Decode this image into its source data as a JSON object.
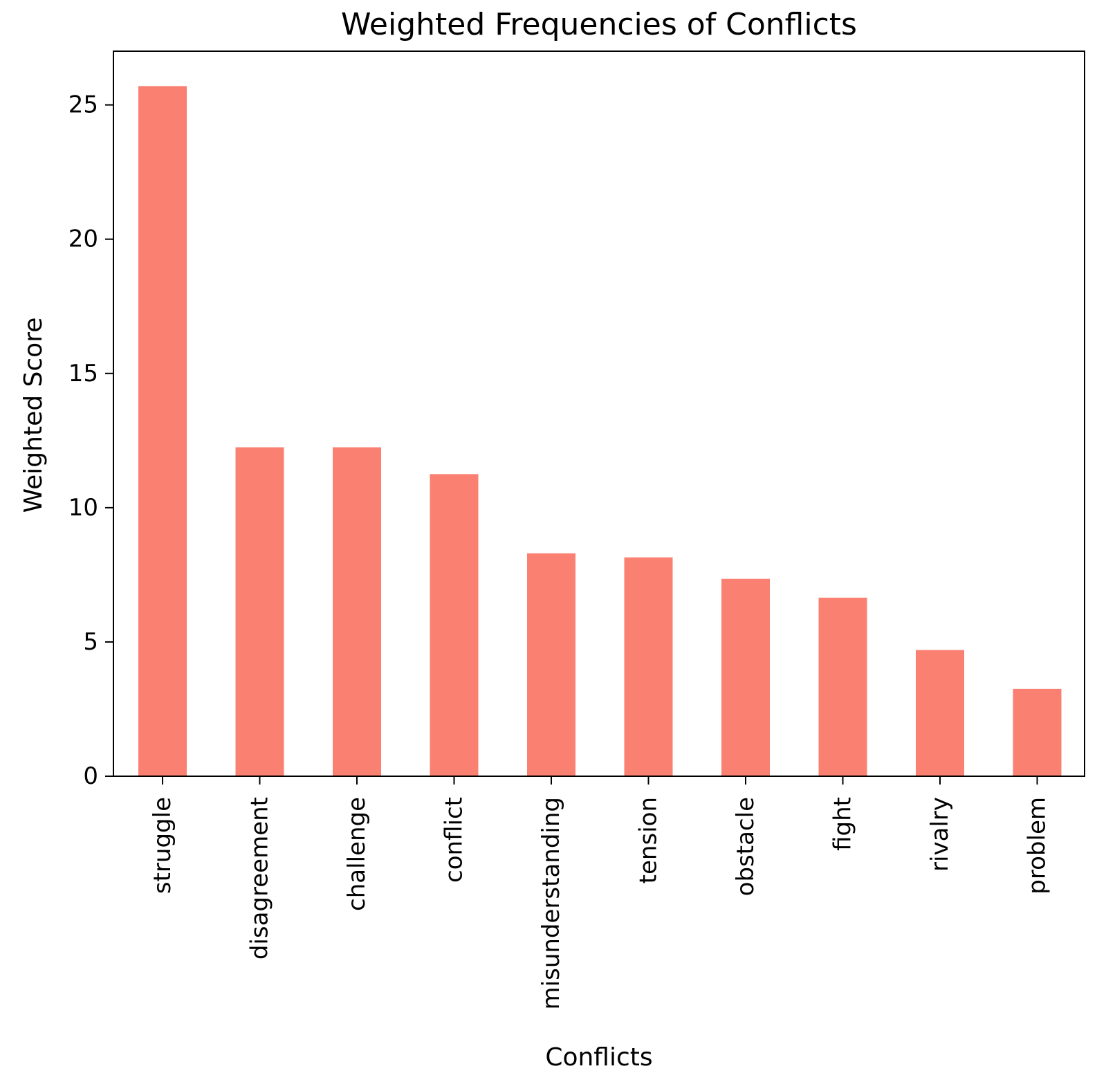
{
  "chart_data": {
    "type": "bar",
    "title": "Weighted Frequencies of Conflicts",
    "xlabel": "Conflicts",
    "ylabel": "Weighted Score",
    "categories": [
      "struggle",
      "disagreement",
      "challenge",
      "conflict",
      "misunderstanding",
      "tension",
      "obstacle",
      "fight",
      "rivalry",
      "problem"
    ],
    "values": [
      25.7,
      12.25,
      12.25,
      11.25,
      8.3,
      8.15,
      7.35,
      6.65,
      4.7,
      3.25
    ],
    "ylim": [
      0,
      27
    ],
    "yticks": [
      0,
      5,
      10,
      15,
      20,
      25
    ],
    "grid": false,
    "legend": false,
    "bar_color": "#fa8072"
  }
}
